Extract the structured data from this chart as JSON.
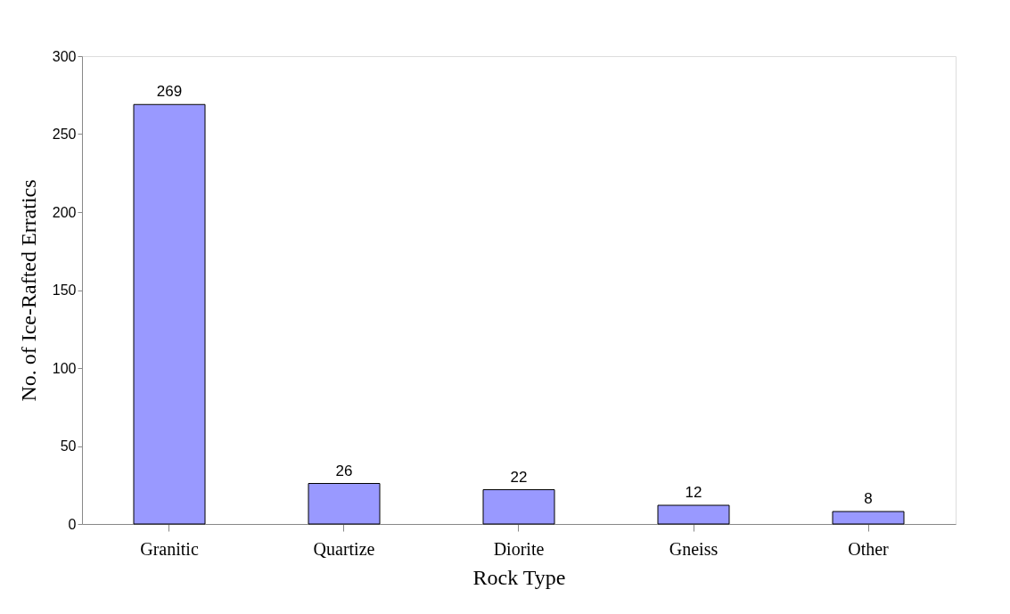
{
  "chart_data": {
    "type": "bar",
    "xlabel": "Rock Type",
    "ylabel": "No. of Ice-Rafted Erratics",
    "categories": [
      "Granitic",
      "Quartize",
      "Diorite",
      "Gneiss",
      "Other"
    ],
    "values": [
      269,
      26,
      22,
      12,
      8
    ],
    "color": "#9999ff",
    "ylim": [
      0,
      300
    ],
    "yticks": [
      0,
      50,
      100,
      150,
      200,
      250,
      300
    ],
    "grid": false,
    "data_labels": true
  }
}
